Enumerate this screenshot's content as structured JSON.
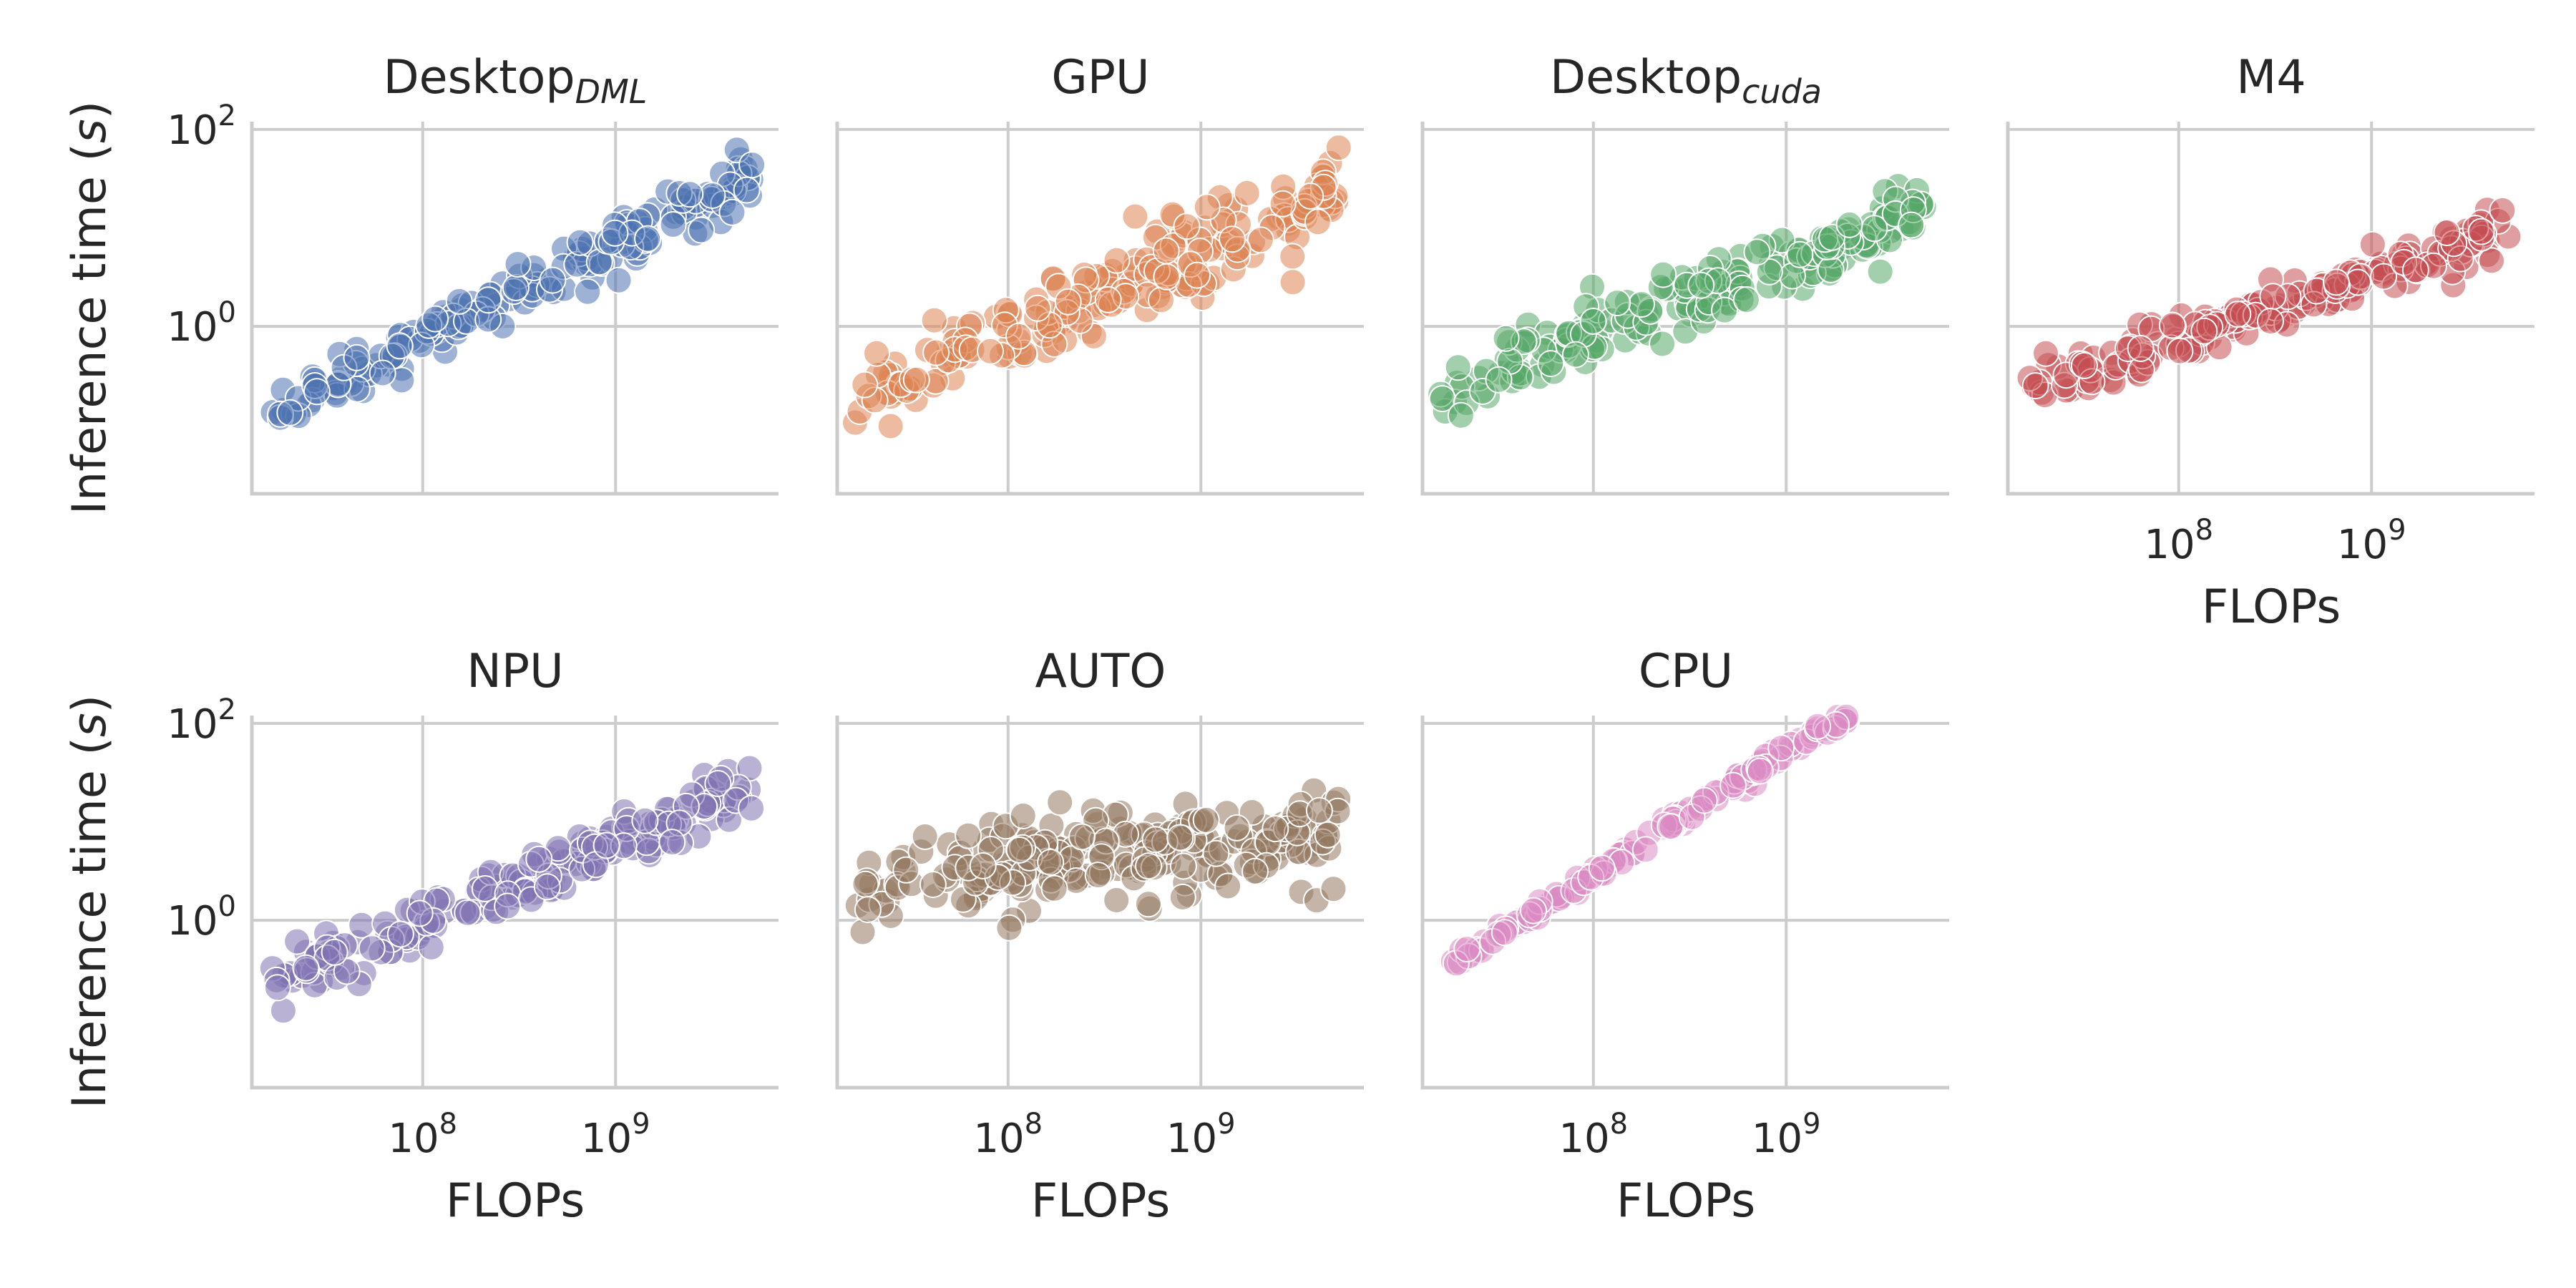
{
  "chart_data": {
    "type": "scatter",
    "xlabel": "FLOPs",
    "ylabel": "Inference time (s)",
    "ylabel_parts": [
      "Inference time (",
      "s",
      ")"
    ],
    "x_scale": "log",
    "y_scale": "log",
    "xlim": [
      13000000.0,
      7000000000.0
    ],
    "ylim": [
      0.02,
      120
    ],
    "x_ticks": [
      100000000.0,
      1000000000.0
    ],
    "x_tick_labels": [
      {
        "base": "10",
        "exp": "8"
      },
      {
        "base": "10",
        "exp": "9"
      }
    ],
    "y_ticks": [
      1,
      100
    ],
    "y_tick_labels": [
      {
        "base": "10",
        "exp": "0"
      },
      {
        "base": "10",
        "exp": "2"
      }
    ],
    "grid": true,
    "panels": [
      {
        "title": "Desktop",
        "subscript": "DML",
        "color": "#4c72b0",
        "trend": {
          "a": -7.81,
          "b": 0.96
        },
        "scatter": 0.13,
        "n": 190,
        "x_range": [
          16000000.0,
          5200000000.0
        ]
      },
      {
        "title": "GPU",
        "subscript": "",
        "color": "#dd8452",
        "trend": {
          "a": -6.79,
          "b": 0.84
        },
        "scatter": 0.2,
        "n": 210,
        "x_range": [
          16000000.0,
          5200000000.0
        ]
      },
      {
        "title": "Desktop",
        "subscript": "cuda",
        "color": "#55a868",
        "trend": {
          "a": -5.75,
          "b": 0.71
        },
        "scatter": 0.16,
        "n": 210,
        "x_range": [
          16000000.0,
          5200000000.0
        ]
      },
      {
        "title": "M4",
        "subscript": "",
        "color": "#c44e52",
        "trend": {
          "a": -5.25,
          "b": 0.64
        },
        "scatter": 0.12,
        "n": 200,
        "x_range": [
          16000000.0,
          5200000000.0
        ]
      },
      {
        "title": "NPU",
        "subscript": "",
        "color": "#8172b3",
        "trend": {
          "a": -6.49,
          "b": 0.81
        },
        "scatter": 0.15,
        "n": 200,
        "x_range": [
          16000000.0,
          5200000000.0
        ]
      },
      {
        "title": "AUTO",
        "subscript": "",
        "color": "#937860",
        "trend": {
          "a": -1.05,
          "b": 0.2
        },
        "scatter": 0.22,
        "n": 250,
        "x_range": [
          16000000.0,
          5200000000.0
        ]
      },
      {
        "title": "CPU",
        "subscript": "",
        "color": "#da8bc3",
        "trend": {
          "a": -9.45,
          "b": 1.24
        },
        "scatter": 0.045,
        "n": 150,
        "x_range": [
          16000000.0,
          5200000000.0
        ]
      }
    ]
  }
}
